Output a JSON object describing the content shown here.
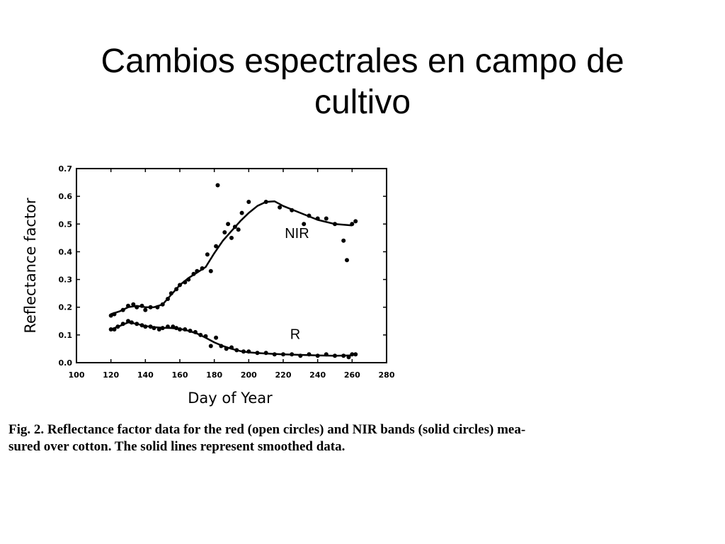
{
  "slide": {
    "title_line1": "Cambios espectrales en campo de",
    "title_line2": "cultivo"
  },
  "caption": {
    "line1": "Fig. 2. Reflectance factor data for the red (open circles) and NIR bands (solid circles) mea-",
    "line2": "sured over cotton. The solid lines represent smoothed data."
  },
  "chart_data": {
    "type": "scatter",
    "title": "",
    "xlabel": "Day of Year",
    "ylabel": "Reflectance factor",
    "xlim": [
      100,
      280
    ],
    "ylim": [
      0.0,
      0.7
    ],
    "xticks": [
      "100",
      "120",
      "140",
      "160",
      "180",
      "200",
      "220",
      "240",
      "260",
      "280"
    ],
    "yticks": [
      "0.0",
      "0.1",
      "0.2",
      "0.3",
      "0.4",
      "0.5",
      "0.6",
      "0.7"
    ],
    "grid": false,
    "annotations": [
      {
        "text": "NIR",
        "x": 228,
        "y": 0.45
      },
      {
        "text": "R",
        "x": 227,
        "y": 0.085
      }
    ],
    "series": [
      {
        "label": "NIR",
        "points": [
          [
            120,
            0.17
          ],
          [
            122,
            0.175
          ],
          [
            127,
            0.19
          ],
          [
            130,
            0.205
          ],
          [
            133,
            0.21
          ],
          [
            135,
            0.2
          ],
          [
            138,
            0.205
          ],
          [
            140,
            0.19
          ],
          [
            143,
            0.2
          ],
          [
            147,
            0.2
          ],
          [
            150,
            0.21
          ],
          [
            153,
            0.23
          ],
          [
            155,
            0.25
          ],
          [
            158,
            0.265
          ],
          [
            160,
            0.28
          ],
          [
            163,
            0.29
          ],
          [
            165,
            0.3
          ],
          [
            168,
            0.32
          ],
          [
            170,
            0.33
          ],
          [
            173,
            0.34
          ],
          [
            176,
            0.39
          ],
          [
            178,
            0.33
          ],
          [
            181,
            0.42
          ],
          [
            182,
            0.64
          ],
          [
            186,
            0.47
          ],
          [
            188,
            0.5
          ],
          [
            190,
            0.45
          ],
          [
            192,
            0.49
          ],
          [
            194,
            0.48
          ],
          [
            196,
            0.54
          ],
          [
            200,
            0.58
          ],
          [
            210,
            0.58
          ],
          [
            218,
            0.56
          ],
          [
            225,
            0.55
          ],
          [
            232,
            0.5
          ],
          [
            235,
            0.53
          ],
          [
            240,
            0.52
          ],
          [
            245,
            0.52
          ],
          [
            250,
            0.5
          ],
          [
            255,
            0.44
          ],
          [
            257,
            0.37
          ],
          [
            260,
            0.5
          ],
          [
            262,
            0.51
          ]
        ],
        "smooth": [
          [
            120,
            0.175
          ],
          [
            125,
            0.185
          ],
          [
            130,
            0.2
          ],
          [
            135,
            0.205
          ],
          [
            140,
            0.2
          ],
          [
            145,
            0.2
          ],
          [
            150,
            0.21
          ],
          [
            155,
            0.245
          ],
          [
            160,
            0.28
          ],
          [
            165,
            0.305
          ],
          [
            170,
            0.325
          ],
          [
            175,
            0.345
          ],
          [
            180,
            0.395
          ],
          [
            185,
            0.44
          ],
          [
            190,
            0.475
          ],
          [
            195,
            0.51
          ],
          [
            200,
            0.54
          ],
          [
            205,
            0.565
          ],
          [
            210,
            0.58
          ],
          [
            215,
            0.582
          ],
          [
            220,
            0.565
          ],
          [
            230,
            0.54
          ],
          [
            240,
            0.515
          ],
          [
            250,
            0.5
          ],
          [
            260,
            0.495
          ]
        ]
      },
      {
        "label": "R",
        "points": [
          [
            120,
            0.12
          ],
          [
            122,
            0.12
          ],
          [
            124,
            0.13
          ],
          [
            127,
            0.14
          ],
          [
            130,
            0.15
          ],
          [
            132,
            0.145
          ],
          [
            135,
            0.14
          ],
          [
            138,
            0.135
          ],
          [
            140,
            0.13
          ],
          [
            143,
            0.13
          ],
          [
            145,
            0.125
          ],
          [
            148,
            0.12
          ],
          [
            150,
            0.125
          ],
          [
            153,
            0.13
          ],
          [
            156,
            0.13
          ],
          [
            158,
            0.125
          ],
          [
            160,
            0.12
          ],
          [
            163,
            0.12
          ],
          [
            166,
            0.115
          ],
          [
            169,
            0.11
          ],
          [
            172,
            0.1
          ],
          [
            175,
            0.095
          ],
          [
            178,
            0.06
          ],
          [
            181,
            0.09
          ],
          [
            184,
            0.06
          ],
          [
            187,
            0.05
          ],
          [
            190,
            0.055
          ],
          [
            193,
            0.045
          ],
          [
            197,
            0.04
          ],
          [
            200,
            0.04
          ],
          [
            205,
            0.035
          ],
          [
            210,
            0.035
          ],
          [
            215,
            0.03
          ],
          [
            220,
            0.03
          ],
          [
            225,
            0.03
          ],
          [
            230,
            0.025
          ],
          [
            235,
            0.03
          ],
          [
            240,
            0.025
          ],
          [
            245,
            0.03
          ],
          [
            250,
            0.025
          ],
          [
            255,
            0.025
          ],
          [
            258,
            0.02
          ],
          [
            260,
            0.03
          ],
          [
            262,
            0.03
          ]
        ],
        "smooth": [
          [
            120,
            0.12
          ],
          [
            125,
            0.132
          ],
          [
            130,
            0.145
          ],
          [
            135,
            0.14
          ],
          [
            140,
            0.132
          ],
          [
            145,
            0.128
          ],
          [
            150,
            0.126
          ],
          [
            155,
            0.125
          ],
          [
            160,
            0.122
          ],
          [
            165,
            0.115
          ],
          [
            170,
            0.105
          ],
          [
            175,
            0.09
          ],
          [
            180,
            0.073
          ],
          [
            185,
            0.06
          ],
          [
            190,
            0.05
          ],
          [
            195,
            0.042
          ],
          [
            200,
            0.037
          ],
          [
            210,
            0.033
          ],
          [
            220,
            0.03
          ],
          [
            230,
            0.028
          ],
          [
            240,
            0.026
          ],
          [
            250,
            0.025
          ],
          [
            260,
            0.026
          ]
        ]
      }
    ]
  }
}
